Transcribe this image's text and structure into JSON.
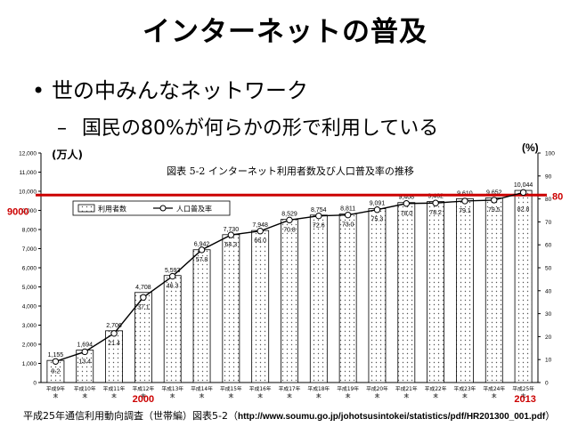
{
  "slide": {
    "title": "インターネットの普及",
    "bullet": "世の中みんなネットワーク",
    "sub_bullet": "国民の80%が何らかの形で利用している",
    "source_label": "平成25年通信利用動向調査（世帯編）図表5-2（",
    "source_url": "http://www.soumu.go.jp/johotsusintokei/statistics/pdf/HR201300_001.pdf",
    "source_close": "）"
  },
  "chart_data": {
    "type": "bar",
    "title": "図表 5-2 インターネット利用者数及び人口普及率の推移",
    "ylabel": "(万人)",
    "y2label": "(%)",
    "ylim": [
      0,
      12000
    ],
    "y2lim": [
      0,
      100
    ],
    "categories": [
      "平成9年末",
      "平成10年末",
      "平成11年末",
      "平成12年末",
      "平成13年末",
      "平成14年末",
      "平成15年末",
      "平成16年末",
      "平成17年末",
      "平成18年末",
      "平成19年末",
      "平成20年末",
      "平成21年末",
      "平成22年末",
      "平成23年末",
      "平成24年末",
      "平成25年末"
    ],
    "category_display": [
      [
        "平成9年",
        "末"
      ],
      [
        "平成10年",
        "末"
      ],
      [
        "平成11年",
        "末"
      ],
      [
        "平成12年",
        "末"
      ],
      [
        "平成13年",
        "末"
      ],
      [
        "平成14年",
        "末"
      ],
      [
        "平成15年",
        "末"
      ],
      [
        "平成16年",
        "末"
      ],
      [
        "平成17年",
        "末"
      ],
      [
        "平成18年",
        "末"
      ],
      [
        "平成19年",
        "末"
      ],
      [
        "平成20年",
        "末"
      ],
      [
        "平成21年",
        "末"
      ],
      [
        "平成22年",
        "末"
      ],
      [
        "平成23年",
        "末"
      ],
      [
        "平成24年",
        "末"
      ],
      [
        "平成25年",
        "末"
      ]
    ],
    "series": [
      {
        "name": "利用者数",
        "kind": "bar",
        "axis": "left",
        "values": [
          1155,
          1694,
          2706,
          4708,
          5593,
          6942,
          7730,
          7948,
          8529,
          8754,
          8811,
          9091,
          9408,
          9462,
          9610,
          9652,
          10044
        ]
      },
      {
        "name": "人口普及率",
        "kind": "line",
        "axis": "right",
        "values": [
          9.2,
          13.4,
          21.4,
          37.1,
          46.3,
          57.8,
          64.3,
          66.0,
          70.8,
          72.6,
          73.0,
          75.3,
          78.0,
          78.2,
          79.1,
          79.5,
          82.8
        ]
      }
    ],
    "left_ticks": [
      "0",
      "1,000",
      "2,000",
      "3,000",
      "4,000",
      "5,000",
      "6,000",
      "7,000",
      "8,000",
      "9,000",
      "10,000",
      "11,000",
      "12,000"
    ],
    "right_ticks": [
      "0",
      "10",
      "20",
      "30",
      "40",
      "50",
      "60",
      "70",
      "80",
      "90",
      "100"
    ],
    "legend_position": "top-left",
    "annotations": {
      "reference_line_value": 9800,
      "left_label": "9000",
      "right_label": "80",
      "year_start_label": "2000",
      "year_end_label": "2013"
    },
    "colors": {
      "bar_fill": "#ffffff",
      "bar_dots": "#555555",
      "line": "#000000",
      "highlight": "#cc0000"
    }
  }
}
